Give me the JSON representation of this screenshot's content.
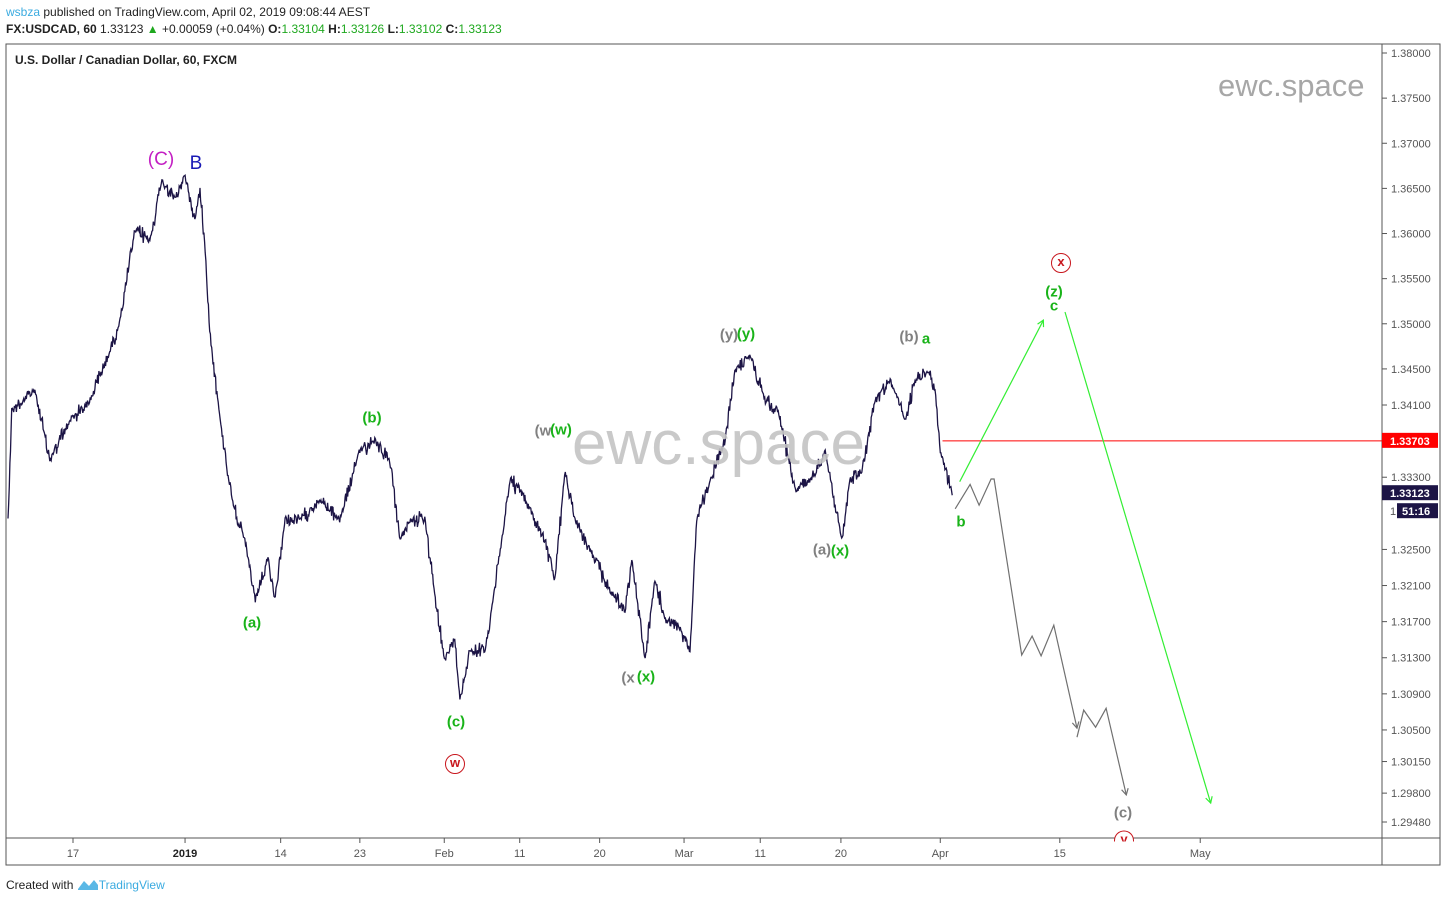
{
  "header": {
    "author": "wsbza",
    "published": "published on TradingView.com, April 02, 2019 09:08:44 AEST",
    "symbol": "FX:USDCAD, 60",
    "last": "1.33123",
    "change": "+0.00059 (+0.04%)",
    "o_label": "O:",
    "o": "1.33104",
    "h_label": "H:",
    "h": "1.33126",
    "l_label": "L:",
    "l": "1.33102",
    "c_label": "C:",
    "c": "1.33123"
  },
  "watermark": "ewc.space",
  "footer": {
    "created_with": "Created with",
    "brand": "TradingView"
  },
  "colors": {
    "price": "#1c1445",
    "projection_green": "#33ee33",
    "projection_gray": "#707070",
    "level": "#ff0000",
    "label_bg": "#1c1445"
  },
  "labels": {
    "C_cap": "(C)",
    "B": "B",
    "a1": "(a)",
    "b1": "(b)",
    "c1": "(c)",
    "w_circle": "w",
    "w_gray": "(w",
    "w_green": "(w)",
    "y_gray": "(y)",
    "y_green": "(y)",
    "x_gray": "(x",
    "x_green": "(x)",
    "a2_gray": "(a)",
    "x2_green": "(x)",
    "b2_gray": "(b)",
    "a_small": "a",
    "x_circle": "x",
    "z": "(z)",
    "c_small": "c",
    "b_small": "b",
    "c2_gray": "(c)",
    "y_circle": "y"
  },
  "chart_data": {
    "type": "line",
    "title": "U.S. Dollar / Canadian Dollar, 60, FXCM",
    "x_unit": "chart day index (0 = Dec 17)",
    "ylim": [
      1.2935,
      1.3815
    ],
    "y_ticks": [
      "1.38000",
      "1.37500",
      "1.37000",
      "1.36500",
      "1.36000",
      "1.35500",
      "1.35000",
      "1.34500",
      "1.34100",
      "1.33300",
      "1.32500",
      "1.32100",
      "1.31700",
      "1.31300",
      "1.30900",
      "1.30500",
      "1.30150",
      "1.29800",
      "1.29480"
    ],
    "x_ticks": [
      {
        "label": "17",
        "day": 0
      },
      {
        "label": "2019",
        "day": 15,
        "bold": true
      },
      {
        "label": "14",
        "day": 27.8
      },
      {
        "label": "23",
        "day": 38.4
      },
      {
        "label": "Feb",
        "day": 49.7
      },
      {
        "label": "11",
        "day": 59.8
      },
      {
        "label": "20",
        "day": 70.5
      },
      {
        "label": "Mar",
        "day": 81.8
      },
      {
        "label": "11",
        "day": 92
      },
      {
        "label": "20",
        "day": 102.8
      },
      {
        "label": "Apr",
        "day": 116.1
      },
      {
        "label": "15",
        "day": 132.1
      },
      {
        "label": "May",
        "day": 150.9
      }
    ],
    "price_path": [
      [
        -8.7,
        1.3283
      ],
      [
        -8.2,
        1.3404
      ],
      [
        -5.1,
        1.3427
      ],
      [
        -3.1,
        1.3349
      ],
      [
        -0.4,
        1.3393
      ],
      [
        2.3,
        1.3416
      ],
      [
        5.0,
        1.3471
      ],
      [
        6.3,
        1.3504
      ],
      [
        8.3,
        1.3604
      ],
      [
        10.3,
        1.3593
      ],
      [
        11.9,
        1.3659
      ],
      [
        13.7,
        1.3637
      ],
      [
        15,
        1.3665
      ],
      [
        16.3,
        1.3615
      ],
      [
        17,
        1.3648
      ],
      [
        17.7,
        1.3582
      ],
      [
        18.3,
        1.3493
      ],
      [
        19.7,
        1.3393
      ],
      [
        21.3,
        1.3305
      ],
      [
        23.0,
        1.326
      ],
      [
        24.4,
        1.3194
      ],
      [
        26.1,
        1.3238
      ],
      [
        27.0,
        1.3194
      ],
      [
        28.4,
        1.3283
      ],
      [
        30.4,
        1.3283
      ],
      [
        33.0,
        1.3305
      ],
      [
        35.7,
        1.3283
      ],
      [
        38.4,
        1.336
      ],
      [
        40.4,
        1.3371
      ],
      [
        42.4,
        1.3349
      ],
      [
        43.8,
        1.326
      ],
      [
        45.1,
        1.3283
      ],
      [
        47.1,
        1.3283
      ],
      [
        48.5,
        1.3194
      ],
      [
        49.8,
        1.3128
      ],
      [
        51.1,
        1.315
      ],
      [
        51.8,
        1.3083
      ],
      [
        53.1,
        1.3139
      ],
      [
        55.2,
        1.3139
      ],
      [
        57.2,
        1.3249
      ],
      [
        58.5,
        1.3327
      ],
      [
        59.8,
        1.3316
      ],
      [
        61.2,
        1.3294
      ],
      [
        63.2,
        1.326
      ],
      [
        64.5,
        1.3216
      ],
      [
        65.9,
        1.3338
      ],
      [
        67.2,
        1.3283
      ],
      [
        69.2,
        1.3249
      ],
      [
        71.9,
        1.3205
      ],
      [
        73.9,
        1.3183
      ],
      [
        74.8,
        1.3238
      ],
      [
        76.6,
        1.3128
      ],
      [
        77.9,
        1.3216
      ],
      [
        79.3,
        1.3172
      ],
      [
        81.3,
        1.3161
      ],
      [
        82.6,
        1.3139
      ],
      [
        83.5,
        1.3283
      ],
      [
        85.3,
        1.3327
      ],
      [
        87.3,
        1.3371
      ],
      [
        88.6,
        1.3449
      ],
      [
        90.6,
        1.3465
      ],
      [
        92.6,
        1.3416
      ],
      [
        94.4,
        1.3404
      ],
      [
        96.7,
        1.3316
      ],
      [
        98.7,
        1.3327
      ],
      [
        100.7,
        1.336
      ],
      [
        102.9,
        1.326
      ],
      [
        104.0,
        1.3327
      ],
      [
        105.6,
        1.3338
      ],
      [
        107.4,
        1.3416
      ],
      [
        109.4,
        1.3438
      ],
      [
        111.4,
        1.3393
      ],
      [
        112.7,
        1.3438
      ],
      [
        114.5,
        1.3449
      ],
      [
        115.4,
        1.3427
      ],
      [
        116.1,
        1.336
      ],
      [
        117.7,
        1.331
      ]
    ],
    "level": {
      "price": 1.33703,
      "label": "1.33703",
      "from_day": 116.4
    },
    "current": {
      "price": 1.33123,
      "label": "1.33123",
      "countdown": "51:16"
    },
    "projection_green": [
      [
        [
          118.7,
          1.3325
        ],
        [
          129.9,
          1.3504
        ]
      ],
      [
        [
          132.8,
          1.3513
        ],
        [
          152.3,
          1.2969
        ]
      ]
    ],
    "projection_gray": [
      [
        [
          118.1,
          1.3295
        ],
        [
          120.1,
          1.3322
        ],
        [
          121.3,
          1.3299
        ],
        [
          122.9,
          1.3328
        ],
        [
          123.3,
          1.3328
        ],
        [
          127.0,
          1.3133
        ],
        [
          128.4,
          1.3154
        ],
        [
          129.6,
          1.3132
        ],
        [
          131.3,
          1.3166
        ],
        [
          134.4,
          1.3052
        ]
      ],
      [
        [
          134.4,
          1.3042
        ],
        [
          135.3,
          1.3072
        ],
        [
          136.9,
          1.3053
        ],
        [
          138.3,
          1.3074
        ],
        [
          141.0,
          1.2978
        ]
      ]
    ]
  }
}
